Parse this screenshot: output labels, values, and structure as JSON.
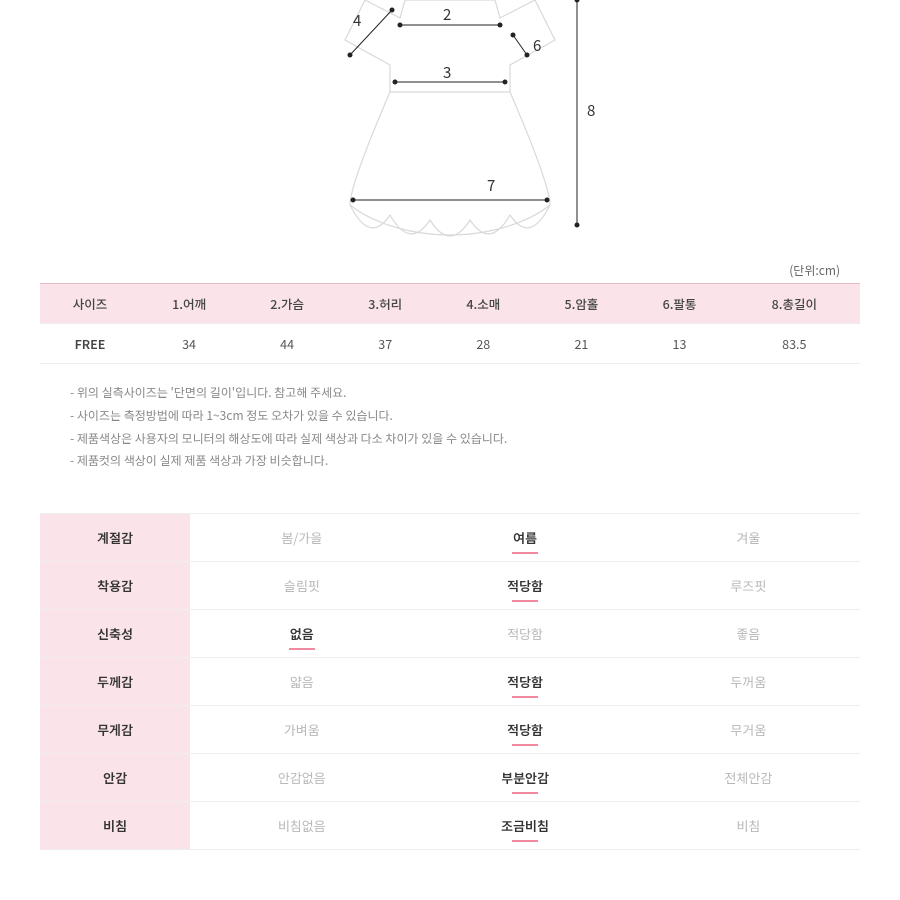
{
  "diagram": {
    "numbers": {
      "n2": "2",
      "n3": "3",
      "n4": "4",
      "n6": "6",
      "n7": "7",
      "n8": "8"
    },
    "stroke_body": "#d9d9d9",
    "stroke_meas": "#222222",
    "dot_color": "#222222"
  },
  "unit_label": "(단위:cm)",
  "size_table": {
    "columns": [
      "사이즈",
      "1.어깨",
      "2.가슴",
      "3.허리",
      "4.소매",
      "5.암홀",
      "6.팔통",
      "8.총길이"
    ],
    "rows": [
      [
        "FREE",
        "34",
        "44",
        "37",
        "28",
        "21",
        "13",
        "83.5"
      ]
    ],
    "header_bg": "#fbe4e9",
    "border_top": "#e6b9c2"
  },
  "notes": [
    "- 위의 실측사이즈는 '단면의 길이'입니다. 참고해 주세요.",
    "- 사이즈는 측정방법에 따라 1~3cm 정도 오차가 있을 수 있습니다.",
    "- 제품색상은 사용자의 모니터의 해상도에 따라 실제 색상과 다소 차이가 있을 수 있습니다.",
    "- 제품컷의 색상이 실제 제품 색상과 가장 비슷합니다."
  ],
  "attributes": [
    {
      "label": "계절감",
      "options": [
        "봄/가을",
        "여름",
        "겨울"
      ],
      "selected": 1
    },
    {
      "label": "착용감",
      "options": [
        "슬림핏",
        "적당함",
        "루즈핏"
      ],
      "selected": 1
    },
    {
      "label": "신축성",
      "options": [
        "없음",
        "적당함",
        "좋음"
      ],
      "selected": 0
    },
    {
      "label": "두께감",
      "options": [
        "얇음",
        "적당함",
        "두꺼움"
      ],
      "selected": 1
    },
    {
      "label": "무게감",
      "options": [
        "가벼움",
        "적당함",
        "무거움"
      ],
      "selected": 1
    },
    {
      "label": "안감",
      "options": [
        "안감없음",
        "부분안감",
        "전체안감"
      ],
      "selected": 1
    },
    {
      "label": "비침",
      "options": [
        "비침없음",
        "조금비침",
        "비침"
      ],
      "selected": 1
    }
  ],
  "colors": {
    "pink_bg": "#fbe4e9",
    "sel_underline": "#f08aa0",
    "opt_grey": "#b8b8b8",
    "text": "#555555"
  }
}
